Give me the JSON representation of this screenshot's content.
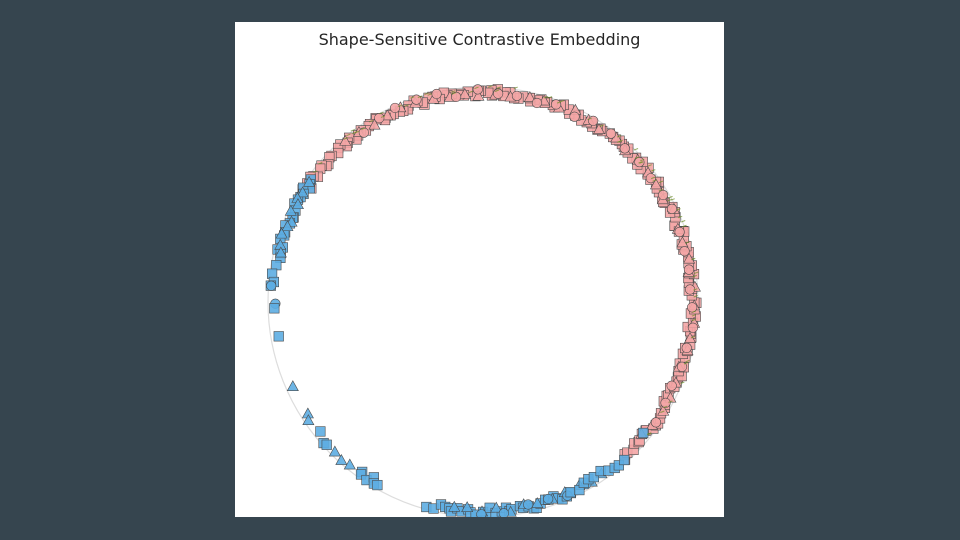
{
  "chart_data": {
    "type": "scatter",
    "title": "Shape-Sensitive Contrastive Embedding",
    "xlabel": "",
    "ylabel": "",
    "xlim": [
      -1.1,
      1.1
    ],
    "ylim": [
      -1.1,
      1.1
    ],
    "grid": false,
    "axes_visible": false,
    "guide_circle": {
      "radius": 1.0,
      "color": "#dddddd"
    },
    "colors": {
      "red_fill": "#f4a6a6",
      "blue_fill": "#5dade2",
      "edge": "#4a4a4a",
      "green_accent": "#6b8e23"
    },
    "series": [
      {
        "group": "red",
        "clusters": [
          {
            "marker": "square",
            "angle_from": 20,
            "angle_to": 88,
            "count": 60
          },
          {
            "marker": "square",
            "angle_from": 88,
            "angle_to": 148,
            "count": 54
          },
          {
            "marker": "square",
            "angle_from": -48,
            "angle_to": 20,
            "count": 60
          },
          {
            "marker": "triangle",
            "angle_from": -40,
            "angle_to": 130,
            "count": 40
          },
          {
            "marker": "circle",
            "angle_from": -35,
            "angle_to": 125,
            "count": 30
          }
        ]
      },
      {
        "group": "blue",
        "clusters": [
          {
            "marker": "square",
            "angle_from": 144,
            "angle_to": 168,
            "count": 20
          },
          {
            "marker": "triangle",
            "angle_from": 146,
            "angle_to": 166,
            "count": 10
          },
          {
            "marker": "square",
            "angle_from": 170,
            "angle_to": 176,
            "count": 4
          },
          {
            "marker": "circle",
            "angle_from": 176,
            "angle_to": 180,
            "count": 2
          },
          {
            "marker": "square",
            "angle_from": 180,
            "angle_to": 183,
            "count": 1
          },
          {
            "marker": "square",
            "angle_from": 189,
            "angle_to": 190,
            "count": 1
          },
          {
            "marker": "triangle",
            "angle_from": 203,
            "angle_to": 204,
            "count": 1
          },
          {
            "marker": "triangle",
            "angle_from": 212,
            "angle_to": 214,
            "count": 2
          },
          {
            "marker": "square",
            "angle_from": 219,
            "angle_to": 223,
            "count": 3
          },
          {
            "marker": "triangle",
            "angle_from": 225,
            "angle_to": 231,
            "count": 3
          },
          {
            "marker": "square",
            "angle_from": 234,
            "angle_to": 240,
            "count": 6
          },
          {
            "marker": "square",
            "angle_from": 254,
            "angle_to": 256,
            "count": 2
          },
          {
            "marker": "square",
            "angle_from": 258,
            "angle_to": 295,
            "count": 30
          },
          {
            "marker": "triangle",
            "angle_from": 262,
            "angle_to": 305,
            "count": 12
          },
          {
            "marker": "circle",
            "angle_from": 270,
            "angle_to": 300,
            "count": 6
          },
          {
            "marker": "square",
            "angle_from": 295,
            "angle_to": 312,
            "count": 10
          },
          {
            "marker": "square",
            "angle_from": 320,
            "angle_to": 322,
            "count": 1
          }
        ]
      }
    ]
  }
}
